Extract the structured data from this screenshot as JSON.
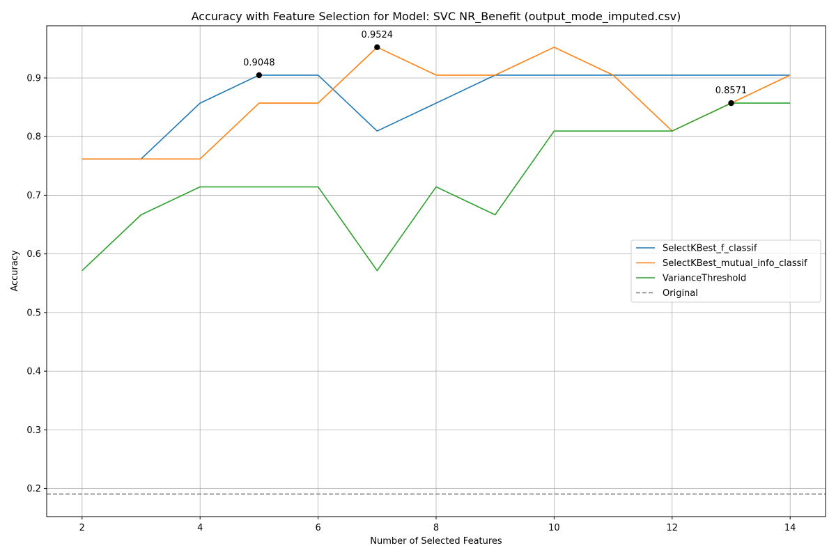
{
  "chart_data": {
    "type": "line",
    "title": "Accuracy with Feature Selection for Model: SVC NR_Benefit (output_mode_imputed.csv)",
    "xlabel": "Number of Selected Features",
    "ylabel": "Accuracy",
    "xlim": [
      1.4,
      14.6
    ],
    "ylim": [
      0.152,
      0.989
    ],
    "xticks": [
      2,
      4,
      6,
      8,
      10,
      12,
      14
    ],
    "yticks": [
      0.2,
      0.3,
      0.4,
      0.5,
      0.6,
      0.7,
      0.8,
      0.9
    ],
    "grid": true,
    "legend_position": "center-right",
    "x": [
      2,
      3,
      4,
      5,
      6,
      7,
      8,
      9,
      10,
      11,
      12,
      13,
      14
    ],
    "series": [
      {
        "name": "SelectKBest_f_classif",
        "color": "#1f77b4",
        "style": "solid",
        "values": [
          0.7619,
          0.7619,
          0.8571,
          0.9048,
          0.9048,
          0.8095,
          0.8571,
          0.9048,
          0.9048,
          0.9048,
          0.9048,
          0.9048,
          0.9048
        ]
      },
      {
        "name": "SelectKBest_mutual_info_classif",
        "color": "#ff7f0e",
        "style": "solid",
        "values": [
          0.7619,
          0.7619,
          0.7619,
          0.8571,
          0.8571,
          0.9524,
          0.9048,
          0.9048,
          0.9524,
          0.9048,
          0.8095,
          0.8571,
          0.9048
        ]
      },
      {
        "name": "VarianceThreshold",
        "color": "#2ca02c",
        "style": "solid",
        "values": [
          0.5714,
          0.6667,
          0.7143,
          0.7143,
          0.7143,
          0.5714,
          0.7143,
          0.6667,
          0.8095,
          0.8095,
          0.8095,
          0.8571,
          0.8571
        ]
      },
      {
        "name": "Original",
        "color": "#808080",
        "style": "dashed",
        "hline": 0.1905
      }
    ],
    "annotations": [
      {
        "x": 5,
        "y": 0.9048,
        "label": "0.9048"
      },
      {
        "x": 7,
        "y": 0.9524,
        "label": "0.9524"
      },
      {
        "x": 13,
        "y": 0.8571,
        "label": "0.8571"
      }
    ]
  }
}
